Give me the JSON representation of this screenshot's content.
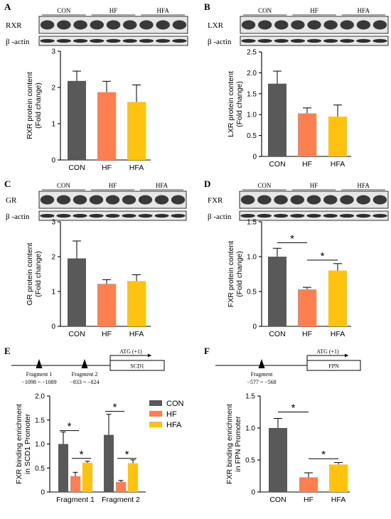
{
  "colors": {
    "con": "#595959",
    "hf": "#ff7f50",
    "hfa": "#ffc20e",
    "blot_dark": "#1a1a1a",
    "text": "#000000"
  },
  "panel_letters": [
    "A",
    "B",
    "C",
    "D",
    "E",
    "F"
  ],
  "blots": [
    {
      "panel": "A",
      "groups": [
        "CON",
        "HF",
        "HFA"
      ],
      "target": "RXR",
      "control": "β -actin"
    },
    {
      "panel": "B",
      "groups": [
        "CON",
        "HF",
        "HFA"
      ],
      "target": "LXR",
      "control": "β -actin"
    },
    {
      "panel": "C",
      "groups": [
        "CON",
        "HF",
        "HFA"
      ],
      "target": "GR",
      "control": "β -actin"
    },
    {
      "panel": "D",
      "groups": [
        "CON",
        "HF",
        "HFA"
      ],
      "target": "FXR",
      "control": "β -actin"
    }
  ],
  "promoters": [
    {
      "panel": "E",
      "atg": "ATG (+1)",
      "gene": "SCD1",
      "fragments": [
        {
          "name": "Fragment 1",
          "range": "−1098 ~ −1089"
        },
        {
          "name": "Fragment 2",
          "range": "−833 ~ −824"
        }
      ]
    },
    {
      "panel": "F",
      "atg": "ATG (+1)",
      "gene": "FPN",
      "fragments": [
        {
          "name": "Fragment",
          "range": "−577 ~ −568"
        }
      ]
    }
  ],
  "chart_data": [
    {
      "panel": "A",
      "type": "bar",
      "categories": [
        "CON",
        "HF",
        "HFA"
      ],
      "values": [
        2.18,
        1.87,
        1.6
      ],
      "errors": [
        0.27,
        0.3,
        0.47
      ],
      "ylabel": "RXR protein content",
      "ylabel2": "(Fold change)",
      "ylim": [
        0,
        3
      ],
      "yticks": [
        0,
        1,
        2,
        3
      ],
      "significance": []
    },
    {
      "panel": "B",
      "type": "bar",
      "categories": [
        "CON",
        "HF",
        "HFA"
      ],
      "values": [
        1.74,
        1.03,
        0.95
      ],
      "errors": [
        0.3,
        0.13,
        0.28
      ],
      "ylabel": "LXR protein content",
      "ylabel2": "(Fold change)",
      "ylim": [
        0,
        2.5
      ],
      "yticks": [
        0,
        0.5,
        1.0,
        1.5,
        2.0,
        2.5
      ],
      "significance": []
    },
    {
      "panel": "C",
      "type": "bar",
      "categories": [
        "CON",
        "HF",
        "HFA"
      ],
      "values": [
        1.95,
        1.22,
        1.3
      ],
      "errors": [
        0.5,
        0.12,
        0.18
      ],
      "ylabel": "GR protein content",
      "ylabel2": "(Fold change)",
      "ylim": [
        0,
        3
      ],
      "yticks": [
        0,
        1,
        2,
        3
      ],
      "significance": []
    },
    {
      "panel": "D",
      "type": "bar",
      "categories": [
        "CON",
        "HF",
        "HFA"
      ],
      "values": [
        1.0,
        0.53,
        0.8
      ],
      "errors": [
        0.12,
        0.03,
        0.1
      ],
      "ylabel": "FXR protein content",
      "ylabel2": "(Fold change)",
      "ylim": [
        0,
        1.5
      ],
      "yticks": [
        0,
        0.5,
        1.0,
        1.5
      ],
      "significance": [
        {
          "from": 0,
          "to": 1,
          "y": 1.2,
          "label": "*"
        },
        {
          "from": 1,
          "to": 2,
          "y": 0.95,
          "label": "*"
        }
      ]
    },
    {
      "panel": "E",
      "type": "bar",
      "categories": [
        "Fragment 1",
        "Fragment 2"
      ],
      "series": [
        {
          "name": "CON",
          "values": [
            1.0,
            1.19
          ],
          "errors": [
            0.25,
            0.43
          ]
        },
        {
          "name": "HF",
          "values": [
            0.33,
            0.21
          ],
          "errors": [
            0.08,
            0.03
          ]
        },
        {
          "name": "HFA",
          "values": [
            0.61,
            0.6
          ],
          "errors": [
            0.03,
            0.07
          ]
        }
      ],
      "ylabel": "FXR binding enrichment",
      "ylabel2": "in SCD1 Promoter",
      "ylim": [
        0,
        2.0
      ],
      "yticks": [
        0,
        0.5,
        1.0,
        1.5,
        2.0
      ],
      "legend": "top-right",
      "significance": [
        {
          "group": 0,
          "from": 0,
          "to": 1,
          "y": 1.28,
          "label": "*"
        },
        {
          "group": 0,
          "from": 1,
          "to": 2,
          "y": 0.7,
          "label": "*"
        },
        {
          "group": 1,
          "from": 0,
          "to": 1,
          "y": 1.68,
          "label": "*"
        },
        {
          "group": 1,
          "from": 1,
          "to": 2,
          "y": 0.7,
          "label": "*"
        }
      ]
    },
    {
      "panel": "F",
      "type": "bar",
      "categories": [
        "CON",
        "HF",
        "HFA"
      ],
      "values": [
        1.0,
        0.23,
        0.43
      ],
      "errors": [
        0.15,
        0.07,
        0.03
      ],
      "ylabel": "FXR binding enrichment",
      "ylabel2": "in FPN Promoter",
      "ylim": [
        0,
        1.5
      ],
      "yticks": [
        0,
        0.5,
        1.0,
        1.5
      ],
      "significance": [
        {
          "from": 0,
          "to": 1,
          "y": 1.25,
          "label": "*"
        },
        {
          "from": 1,
          "to": 2,
          "y": 0.52,
          "label": "*"
        }
      ]
    }
  ]
}
